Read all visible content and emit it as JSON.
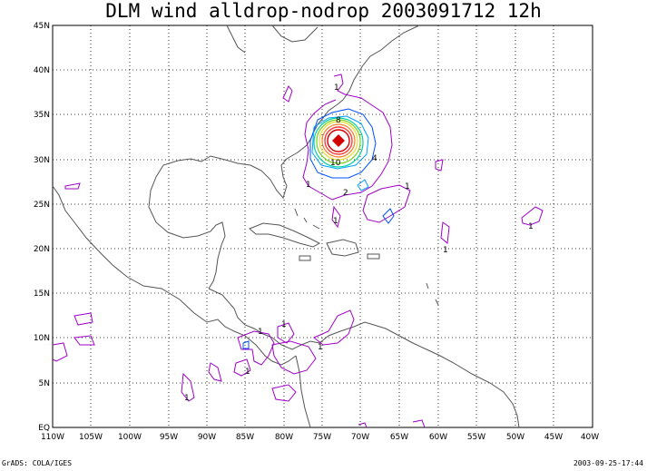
{
  "title": "DLM wind alldrop-nodrop 2003091712 12h",
  "footer_left": "GrADS: COLA/IGES",
  "footer_right": "2003-09-25-17:44",
  "map": {
    "lat_labels": [
      "45N",
      "40N",
      "35N",
      "30N",
      "25N",
      "20N",
      "15N",
      "10N",
      "5N",
      "EQ"
    ],
    "lon_labels": [
      "110W",
      "105W",
      "100W",
      "95W",
      "90W",
      "85W",
      "80W",
      "75W",
      "70W",
      "65W",
      "60W",
      "55W",
      "50W",
      "45W",
      "40W"
    ],
    "contour_labels": [
      "1",
      "1",
      "1",
      "1",
      "1",
      "1",
      "1",
      "1",
      "1",
      "1",
      "1",
      "2",
      "4",
      "8",
      "10"
    ],
    "colors": {
      "contour_1": "#a000c8",
      "contour_2": "#00a0ff",
      "contour_3": "#0050ff",
      "contour_4": "#00d2a0",
      "contour_5": "#78d21e",
      "contour_6": "#e6dc32",
      "contour_7": "#f08228",
      "contour_8": "#fa3c3c",
      "contour_9": "#d20000"
    }
  }
}
